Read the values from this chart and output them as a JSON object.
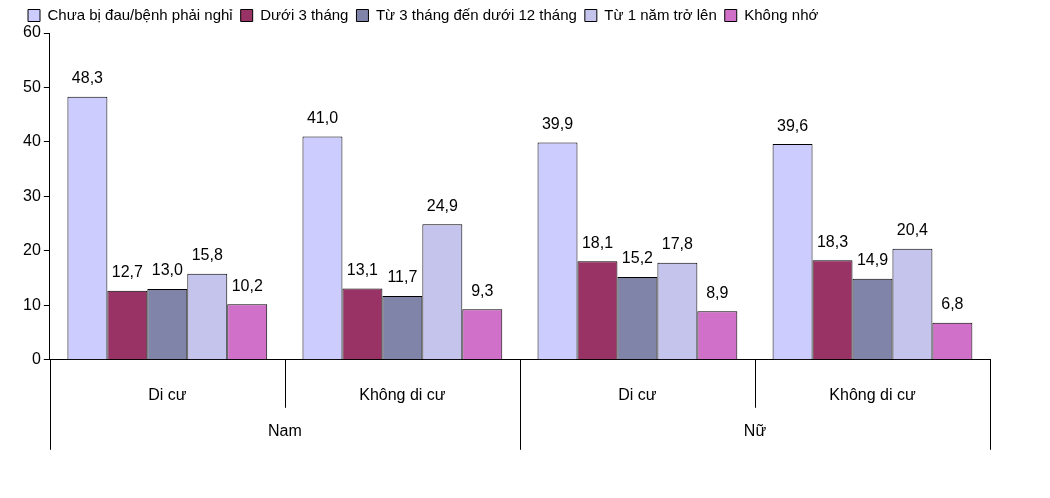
{
  "chart_data": {
    "type": "bar",
    "categories": [
      "Di cư",
      "Không di cư",
      "Di cư",
      "Không di cư"
    ],
    "series": [
      {
        "name": "Chưa bị đau/bệnh phải nghỉ",
        "color": "#ccccff",
        "values": [
          48.3,
          41.0,
          39.9,
          39.6
        ],
        "value_labels": [
          "48,3",
          "41,0",
          "39,9",
          "39,6"
        ]
      },
      {
        "name": "Dưới 3 tháng",
        "color": "#993366",
        "values": [
          12.7,
          13.1,
          18.1,
          18.3
        ],
        "value_labels": [
          "12,7",
          "13,1",
          "18,1",
          "18,3"
        ]
      },
      {
        "name": "Từ 3 tháng đến dưới 12 tháng",
        "color": "#7f84a8",
        "values": [
          13.0,
          11.7,
          15.2,
          14.9
        ],
        "value_labels": [
          "13,0",
          "11,7",
          "15,2",
          "14,9"
        ]
      },
      {
        "name": "Từ 1 năm trở lên",
        "color": "#c4c4ec",
        "values": [
          15.8,
          24.9,
          17.8,
          20.4
        ],
        "value_labels": [
          "15,8",
          "24,9",
          "17,8",
          "20,4"
        ]
      },
      {
        "name": "Không nhớ",
        "color": "#d070c8",
        "values": [
          10.2,
          9.3,
          8.9,
          6.8
        ],
        "value_labels": [
          "10,2",
          "9,3",
          "8,9",
          "6,8"
        ]
      }
    ],
    "ylim": [
      0,
      60
    ],
    "yticks": [
      0,
      10,
      20,
      30,
      40,
      50,
      60
    ],
    "grid": false,
    "legend": "top",
    "annotations": [
      "Nam",
      "Nữ"
    ]
  }
}
